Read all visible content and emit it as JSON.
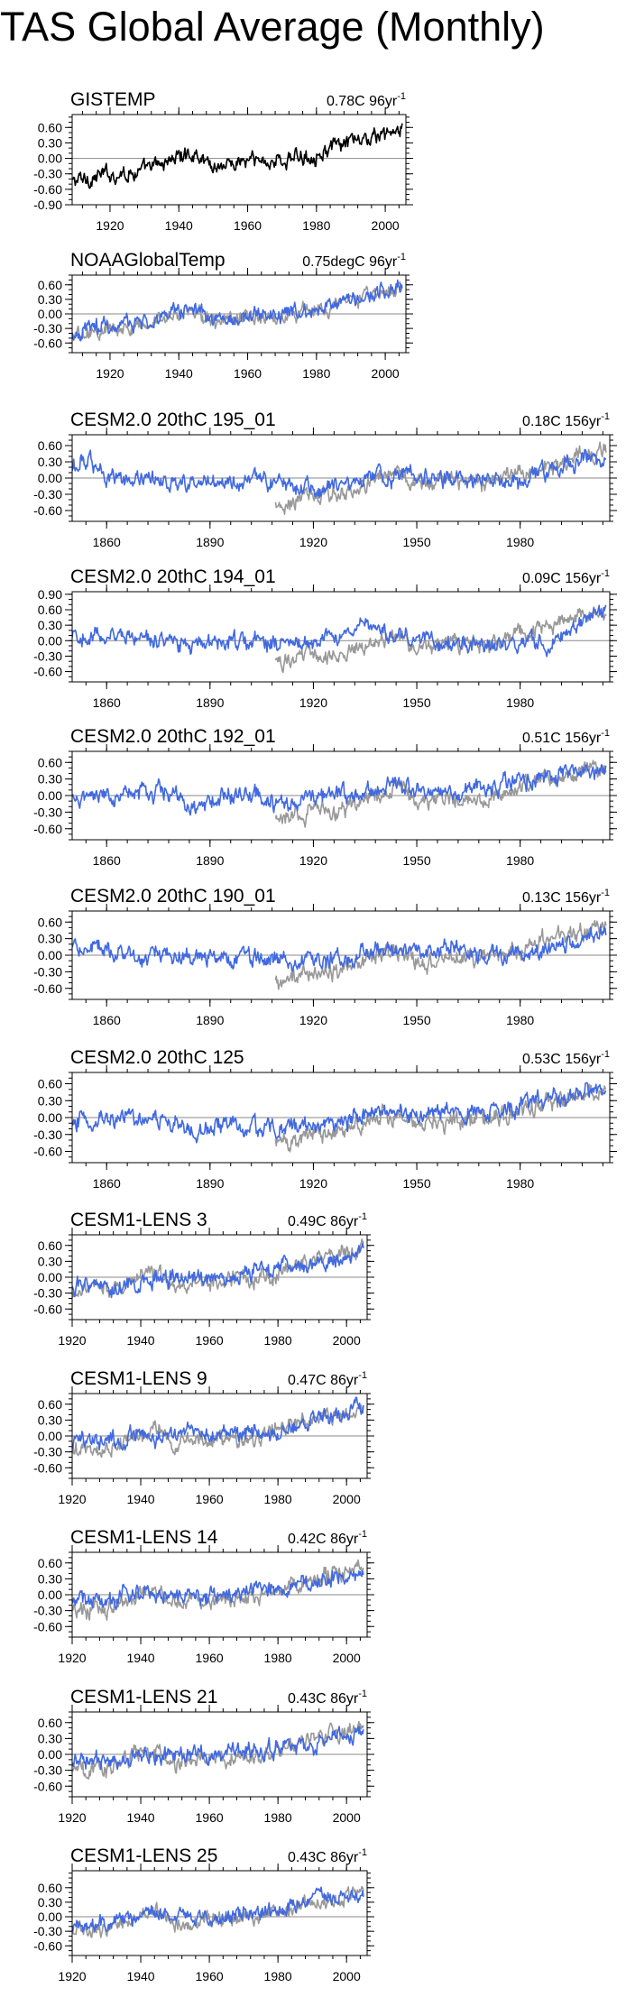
{
  "title": "TAS Global Average (Monthly)",
  "colors": {
    "obs": "#000000",
    "model": "#4169e1",
    "obs_overlay": "#999999",
    "zero_line": "#888888"
  },
  "chart_data": [
    {
      "type": "line",
      "title": "GISTEMP",
      "trend": "0.78C 96yr",
      "trend_sup": "-1",
      "xlim": [
        1909,
        2006
      ],
      "xticks": [
        1920,
        1940,
        1960,
        1980,
        2000
      ],
      "ylim": [
        -0.9,
        0.85
      ],
      "yticks": [
        0.6,
        0.3,
        0.0,
        -0.3,
        -0.6,
        -0.9
      ],
      "yticklabels": [
        "0.60",
        "0.30",
        "0.00",
        "-0.30",
        "-0.60",
        "-0.90"
      ],
      "obs": {
        "name": "GISTEMP",
        "years": [
          1909,
          1920,
          1930,
          1940,
          1945,
          1950,
          1960,
          1970,
          1980,
          1990,
          2000,
          2005
        ],
        "values": [
          -0.45,
          -0.3,
          -0.25,
          0.05,
          0.1,
          -0.15,
          -0.05,
          -0.05,
          0.1,
          0.3,
          0.45,
          0.55
        ]
      },
      "series": []
    },
    {
      "type": "line",
      "title": "NOAAGlobalTemp",
      "trend": "0.75degC 96yr",
      "trend_sup": "-1",
      "xlim": [
        1909,
        2006
      ],
      "xticks": [
        1920,
        1940,
        1960,
        1980,
        2000
      ],
      "ylim": [
        -0.8,
        0.8
      ],
      "yticks": [
        0.6,
        0.3,
        0.0,
        -0.3,
        -0.6
      ],
      "yticklabels": [
        "0.60",
        "0.30",
        "0.00",
        "-0.30",
        "-0.60"
      ],
      "obs": {
        "name": "NOAAGlobalTemp",
        "years": [
          1909,
          1920,
          1930,
          1940,
          1945,
          1950,
          1960,
          1970,
          1980,
          1990,
          2000,
          2005
        ],
        "values": [
          -0.45,
          -0.3,
          -0.25,
          0.05,
          0.1,
          -0.15,
          -0.05,
          -0.05,
          0.1,
          0.3,
          0.45,
          0.55
        ]
      },
      "series": [
        {
          "name": "NOAAGlobalTemp",
          "years": [
            1909,
            1920,
            1930,
            1940,
            1945,
            1950,
            1960,
            1970,
            1980,
            1990,
            2000,
            2005
          ],
          "values": [
            -0.4,
            -0.25,
            -0.2,
            0.05,
            0.1,
            -0.1,
            -0.05,
            0.0,
            0.1,
            0.3,
            0.45,
            0.55
          ]
        }
      ]
    },
    {
      "type": "line",
      "title": "CESM2.0 20thC 195_01",
      "trend": "0.18C 156yr",
      "trend_sup": "-1",
      "xlim": [
        1850,
        2006
      ],
      "xticks": [
        1860,
        1890,
        1920,
        1950,
        1980
      ],
      "ylim": [
        -0.8,
        0.8
      ],
      "yticks": [
        0.6,
        0.3,
        0.0,
        -0.3,
        -0.6
      ],
      "yticklabels": [
        "0.60",
        "0.30",
        "0.00",
        "-0.30",
        "-0.60"
      ],
      "obs": {
        "name": "GISTEMP",
        "years": [
          1909,
          1920,
          1930,
          1940,
          1945,
          1950,
          1960,
          1970,
          1980,
          1990,
          2000,
          2005
        ],
        "values": [
          -0.45,
          -0.3,
          -0.25,
          0.05,
          0.1,
          -0.15,
          -0.05,
          -0.05,
          0.1,
          0.3,
          0.45,
          0.55
        ]
      },
      "series": [
        {
          "name": "CESM2.0 20thC 195_01",
          "years": [
            1850,
            1853,
            1860,
            1875,
            1890,
            1905,
            1920,
            1935,
            1950,
            1965,
            1980,
            1995,
            2005
          ],
          "values": [
            0.1,
            0.4,
            0.05,
            -0.05,
            -0.1,
            -0.05,
            -0.2,
            0.0,
            0.05,
            0.0,
            -0.05,
            0.3,
            0.35
          ]
        }
      ]
    },
    {
      "type": "line",
      "title": "CESM2.0 20thC 194_01",
      "trend": "0.09C 156yr",
      "trend_sup": "-1",
      "xlim": [
        1850,
        2006
      ],
      "xticks": [
        1860,
        1890,
        1920,
        1950,
        1980
      ],
      "ylim": [
        -0.8,
        0.95
      ],
      "yticks": [
        0.9,
        0.6,
        0.3,
        0.0,
        -0.3,
        -0.6
      ],
      "yticklabels": [
        "0.90",
        "0.60",
        "0.30",
        "0.00",
        "-0.30",
        "-0.60"
      ],
      "obs": {
        "name": "GISTEMP",
        "years": [
          1909,
          1920,
          1930,
          1940,
          1945,
          1950,
          1960,
          1970,
          1980,
          1990,
          2000,
          2005
        ],
        "values": [
          -0.45,
          -0.3,
          -0.25,
          0.05,
          0.1,
          -0.15,
          -0.05,
          -0.05,
          0.1,
          0.3,
          0.45,
          0.55
        ]
      },
      "series": [
        {
          "name": "CESM2.0 20thC 194_01",
          "years": [
            1850,
            1860,
            1870,
            1880,
            1890,
            1900,
            1910,
            1920,
            1930,
            1935,
            1940,
            1950,
            1960,
            1970,
            1980,
            1990,
            2000,
            2005
          ],
          "values": [
            0.1,
            0.1,
            0.05,
            -0.05,
            -0.05,
            0.0,
            -0.05,
            -0.1,
            0.15,
            0.3,
            0.2,
            0.0,
            -0.1,
            -0.05,
            -0.05,
            0.0,
            0.4,
            0.65
          ]
        }
      ]
    },
    {
      "type": "line",
      "title": "CESM2.0 20thC 192_01",
      "trend": "0.51C 156yr",
      "trend_sup": "-1",
      "xlim": [
        1850,
        2006
      ],
      "xticks": [
        1860,
        1890,
        1920,
        1950,
        1980
      ],
      "ylim": [
        -0.8,
        0.8
      ],
      "yticks": [
        0.6,
        0.3,
        0.0,
        -0.3,
        -0.6
      ],
      "yticklabels": [
        "0.60",
        "0.30",
        "0.00",
        "-0.30",
        "-0.60"
      ],
      "obs": {
        "name": "GISTEMP",
        "years": [
          1909,
          1920,
          1930,
          1940,
          1945,
          1950,
          1960,
          1970,
          1980,
          1990,
          2000,
          2005
        ],
        "values": [
          -0.45,
          -0.3,
          -0.25,
          0.05,
          0.1,
          -0.15,
          -0.05,
          -0.05,
          0.1,
          0.3,
          0.45,
          0.55
        ]
      },
      "series": [
        {
          "name": "CESM2.0 20thC 192_01",
          "years": [
            1850,
            1860,
            1870,
            1880,
            1887,
            1895,
            1905,
            1915,
            1925,
            1935,
            1945,
            1955,
            1965,
            1975,
            1985,
            1995,
            2005
          ],
          "values": [
            0.0,
            0.0,
            0.1,
            0.0,
            -0.3,
            0.05,
            -0.05,
            -0.15,
            0.0,
            0.1,
            0.15,
            0.05,
            0.1,
            0.2,
            0.25,
            0.4,
            0.5
          ]
        }
      ]
    },
    {
      "type": "line",
      "title": "CESM2.0 20thC 190_01",
      "trend": "0.13C 156yr",
      "trend_sup": "-1",
      "xlim": [
        1850,
        2006
      ],
      "xticks": [
        1860,
        1890,
        1920,
        1950,
        1980
      ],
      "ylim": [
        -0.8,
        0.8
      ],
      "yticks": [
        0.6,
        0.3,
        0.0,
        -0.3,
        -0.6
      ],
      "yticklabels": [
        "0.60",
        "0.30",
        "0.00",
        "-0.30",
        "-0.60"
      ],
      "obs": {
        "name": "GISTEMP",
        "years": [
          1909,
          1920,
          1930,
          1940,
          1945,
          1950,
          1960,
          1970,
          1980,
          1990,
          2000,
          2005
        ],
        "values": [
          -0.45,
          -0.3,
          -0.25,
          0.05,
          0.1,
          -0.15,
          -0.05,
          -0.05,
          0.1,
          0.3,
          0.45,
          0.55
        ]
      },
      "series": [
        {
          "name": "CESM2.0 20thC 190_01",
          "years": [
            1850,
            1860,
            1870,
            1880,
            1890,
            1900,
            1910,
            1920,
            1930,
            1940,
            1950,
            1960,
            1970,
            1980,
            1990,
            2000,
            2005
          ],
          "values": [
            0.15,
            0.05,
            0.0,
            0.0,
            -0.05,
            -0.05,
            -0.1,
            -0.1,
            0.0,
            0.15,
            0.05,
            0.2,
            0.0,
            0.05,
            0.1,
            0.3,
            0.45
          ]
        }
      ]
    },
    {
      "type": "line",
      "title": "CESM2.0 20thC 125",
      "trend": "0.53C 156yr",
      "trend_sup": "-1",
      "xlim": [
        1850,
        2006
      ],
      "xticks": [
        1860,
        1890,
        1920,
        1950,
        1980
      ],
      "ylim": [
        -0.8,
        0.8
      ],
      "yticks": [
        0.6,
        0.3,
        0.0,
        -0.3,
        -0.6
      ],
      "yticklabels": [
        "0.60",
        "0.30",
        "0.00",
        "-0.30",
        "-0.60"
      ],
      "obs": {
        "name": "GISTEMP",
        "years": [
          1909,
          1920,
          1930,
          1940,
          1945,
          1950,
          1960,
          1970,
          1980,
          1990,
          2000,
          2005
        ],
        "values": [
          -0.45,
          -0.3,
          -0.25,
          0.05,
          0.1,
          -0.15,
          -0.05,
          -0.05,
          0.1,
          0.3,
          0.45,
          0.55
        ]
      },
      "series": [
        {
          "name": "CESM2.0 20thC 125",
          "years": [
            1850,
            1865,
            1880,
            1887,
            1895,
            1905,
            1920,
            1935,
            1950,
            1965,
            1980,
            1995,
            2005
          ],
          "values": [
            -0.1,
            0.0,
            -0.1,
            -0.3,
            -0.1,
            -0.2,
            -0.15,
            0.0,
            0.05,
            0.1,
            0.2,
            0.4,
            0.5
          ]
        }
      ]
    },
    {
      "type": "line",
      "title": "CESM1-LENS 3",
      "trend": "0.49C 86yr",
      "trend_sup": "-1",
      "xlim": [
        1920,
        2006
      ],
      "xticks": [
        1920,
        1940,
        1960,
        1980,
        2000
      ],
      "ylim": [
        -0.8,
        0.8
      ],
      "yticks": [
        0.6,
        0.3,
        0.0,
        -0.3,
        -0.6
      ],
      "yticklabels": [
        "0.60",
        "0.30",
        "0.00",
        "-0.30",
        "-0.60"
      ],
      "obs": {
        "name": "GISTEMP",
        "years": [
          1909,
          1920,
          1930,
          1940,
          1945,
          1950,
          1960,
          1970,
          1980,
          1990,
          2000,
          2005
        ],
        "values": [
          -0.45,
          -0.3,
          -0.25,
          0.05,
          0.1,
          -0.15,
          -0.05,
          -0.05,
          0.1,
          0.3,
          0.45,
          0.55
        ]
      },
      "series": [
        {
          "name": "CESM1-LENS 3",
          "years": [
            1920,
            1930,
            1940,
            1950,
            1960,
            1970,
            1980,
            1990,
            2000,
            2005
          ],
          "values": [
            -0.2,
            -0.15,
            -0.1,
            0.0,
            0.0,
            0.0,
            0.2,
            0.25,
            0.4,
            0.5
          ]
        }
      ]
    },
    {
      "type": "line",
      "title": "CESM1-LENS 9",
      "trend": "0.47C 86yr",
      "trend_sup": "-1",
      "xlim": [
        1920,
        2006
      ],
      "xticks": [
        1920,
        1940,
        1960,
        1980,
        2000
      ],
      "ylim": [
        -0.8,
        0.8
      ],
      "yticks": [
        0.6,
        0.3,
        0.0,
        -0.3,
        -0.6
      ],
      "yticklabels": [
        "0.60",
        "0.30",
        "0.00",
        "-0.30",
        "-0.60"
      ],
      "obs": {
        "name": "GISTEMP",
        "years": [
          1909,
          1920,
          1930,
          1940,
          1945,
          1950,
          1960,
          1970,
          1980,
          1990,
          2000,
          2005
        ],
        "values": [
          -0.45,
          -0.3,
          -0.25,
          0.05,
          0.1,
          -0.15,
          -0.05,
          -0.05,
          0.1,
          0.3,
          0.45,
          0.55
        ]
      },
      "series": [
        {
          "name": "CESM1-LENS 9",
          "years": [
            1920,
            1930,
            1940,
            1950,
            1960,
            1970,
            1980,
            1990,
            2000,
            2005
          ],
          "values": [
            -0.15,
            -0.1,
            0.0,
            0.0,
            0.05,
            0.05,
            0.1,
            0.25,
            0.45,
            0.6
          ]
        }
      ]
    },
    {
      "type": "line",
      "title": "CESM1-LENS 14",
      "trend": "0.42C 86yr",
      "trend_sup": "-1",
      "xlim": [
        1920,
        2006
      ],
      "xticks": [
        1920,
        1940,
        1960,
        1980,
        2000
      ],
      "ylim": [
        -0.8,
        0.8
      ],
      "yticks": [
        0.6,
        0.3,
        0.0,
        -0.3,
        -0.6
      ],
      "yticklabels": [
        "0.60",
        "0.30",
        "0.00",
        "-0.30",
        "-0.60"
      ],
      "obs": {
        "name": "GISTEMP",
        "years": [
          1909,
          1920,
          1930,
          1940,
          1945,
          1950,
          1960,
          1970,
          1980,
          1990,
          2000,
          2005
        ],
        "values": [
          -0.45,
          -0.3,
          -0.25,
          0.05,
          0.1,
          -0.15,
          -0.05,
          -0.05,
          0.1,
          0.3,
          0.45,
          0.55
        ]
      },
      "series": [
        {
          "name": "CESM1-LENS 14",
          "years": [
            1920,
            1930,
            1940,
            1950,
            1960,
            1970,
            1980,
            1990,
            2000,
            2005
          ],
          "values": [
            -0.1,
            -0.05,
            0.05,
            0.0,
            -0.05,
            0.05,
            0.1,
            0.25,
            0.35,
            0.45
          ]
        }
      ]
    },
    {
      "type": "line",
      "title": "CESM1-LENS 21",
      "trend": "0.43C 86yr",
      "trend_sup": "-1",
      "xlim": [
        1920,
        2006
      ],
      "xticks": [
        1920,
        1940,
        1960,
        1980,
        2000
      ],
      "ylim": [
        -0.8,
        0.8
      ],
      "yticks": [
        0.6,
        0.3,
        0.0,
        -0.3,
        -0.6
      ],
      "yticklabels": [
        "0.60",
        "0.30",
        "0.00",
        "-0.30",
        "-0.60"
      ],
      "obs": {
        "name": "GISTEMP",
        "years": [
          1909,
          1920,
          1930,
          1940,
          1945,
          1950,
          1960,
          1970,
          1980,
          1990,
          2000,
          2005
        ],
        "values": [
          -0.45,
          -0.3,
          -0.25,
          0.05,
          0.1,
          -0.15,
          -0.05,
          -0.05,
          0.1,
          0.3,
          0.45,
          0.55
        ]
      },
      "series": [
        {
          "name": "CESM1-LENS 21",
          "years": [
            1920,
            1930,
            1940,
            1950,
            1960,
            1970,
            1980,
            1990,
            2000,
            2005
          ],
          "values": [
            -0.15,
            -0.15,
            -0.05,
            0.0,
            0.0,
            0.05,
            0.1,
            0.2,
            0.35,
            0.45
          ]
        }
      ]
    },
    {
      "type": "line",
      "title": "CESM1-LENS 25",
      "trend": "0.43C 86yr",
      "trend_sup": "-1",
      "xlim": [
        1920,
        2006
      ],
      "xticks": [
        1920,
        1940,
        1960,
        1980,
        2000
      ],
      "ylim": [
        -0.8,
        0.95
      ],
      "yticks": [
        0.6,
        0.3,
        0.0,
        -0.3,
        -0.6
      ],
      "yticklabels": [
        "0.60",
        "0.30",
        "0.00",
        "-0.30",
        "-0.60"
      ],
      "obs": {
        "name": "GISTEMP",
        "years": [
          1909,
          1920,
          1930,
          1940,
          1945,
          1950,
          1960,
          1970,
          1980,
          1990,
          2000,
          2005
        ],
        "values": [
          -0.45,
          -0.3,
          -0.25,
          0.05,
          0.1,
          -0.15,
          -0.05,
          -0.05,
          0.1,
          0.3,
          0.45,
          0.55
        ]
      },
      "series": [
        {
          "name": "CESM1-LENS 25",
          "years": [
            1920,
            1930,
            1940,
            1950,
            1960,
            1970,
            1980,
            1990,
            2000,
            2005
          ],
          "values": [
            -0.2,
            -0.15,
            0.0,
            0.05,
            -0.05,
            0.05,
            0.1,
            0.45,
            0.4,
            0.45
          ]
        }
      ]
    }
  ]
}
